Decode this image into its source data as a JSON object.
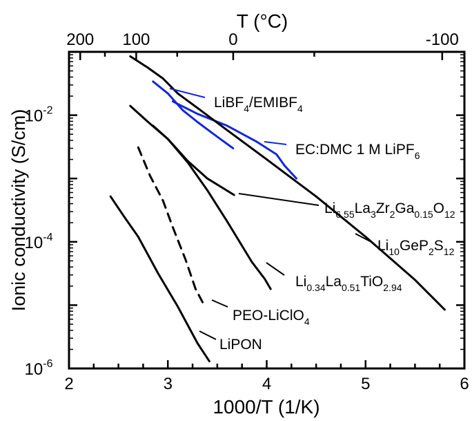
{
  "chart_data": {
    "type": "line",
    "xlabel": "1000/T (1/K)",
    "ylabel": "Ionic conductivity (S/cm)",
    "top_axis_label": "T (°C)",
    "xlim": [
      2,
      6
    ],
    "ylim_log10": [
      -6,
      -1
    ],
    "log_y": true,
    "grid": false,
    "x_ticks": [
      "2",
      "3",
      "4",
      "5",
      "6"
    ],
    "top_ticks": [
      "200",
      "100",
      "0",
      "-100"
    ],
    "y_ticks": [
      {
        "base": "10",
        "exp": "-2",
        "value": 0.01
      },
      {
        "base": "10",
        "exp": "-4",
        "value": 0.0001
      },
      {
        "base": "10",
        "exp": "-6",
        "value": 1e-06
      }
    ],
    "series": [
      {
        "key": "libf4",
        "label_parts": [
          [
            "LiBF",
            "n"
          ],
          [
            "4",
            "sub"
          ],
          [
            "/EMIBF",
            "n"
          ],
          [
            "4",
            "sub"
          ]
        ],
        "color": "#1428d4",
        "dashed": false,
        "x": [
          2.85,
          3.0,
          3.15,
          3.3,
          3.45,
          3.55,
          3.66
        ],
        "y": [
          0.034,
          0.022,
          0.012,
          0.0078,
          0.0052,
          0.004,
          0.003
        ]
      },
      {
        "key": "ecdmc",
        "label_parts": [
          [
            "EC:DMC 1 M LiPF",
            "n"
          ],
          [
            "6",
            "sub"
          ]
        ],
        "color": "#1428d4",
        "dashed": false,
        "x": [
          3.05,
          3.3,
          3.6,
          3.9,
          4.1,
          4.18,
          4.3
        ],
        "y": [
          0.0165,
          0.0105,
          0.0068,
          0.0038,
          0.0024,
          0.0016,
          0.001
        ]
      },
      {
        "key": "lgps",
        "label_parts": [
          [
            "Li",
            "n"
          ],
          [
            "10",
            "sub"
          ],
          [
            "GeP",
            "n"
          ],
          [
            "2",
            "sub"
          ],
          [
            "S",
            "n"
          ],
          [
            "12",
            "sub"
          ]
        ],
        "color": "#000000",
        "dashed": false,
        "x": [
          2.62,
          2.8,
          2.95,
          3.1,
          3.3,
          3.6,
          4.0,
          4.5,
          5.0,
          5.5,
          5.8
        ],
        "y": [
          0.085,
          0.056,
          0.038,
          0.022,
          0.013,
          0.0058,
          0.002,
          0.00052,
          0.00012,
          2.5e-05,
          8.5e-06
        ]
      },
      {
        "key": "llzo",
        "label_parts": [
          [
            "Li",
            "n"
          ],
          [
            "6.55",
            "sub"
          ],
          [
            "La",
            "n"
          ],
          [
            "3",
            "sub"
          ],
          [
            "Zr",
            "n"
          ],
          [
            "2",
            "sub"
          ],
          [
            "Ga",
            "n"
          ],
          [
            "0.15",
            "sub"
          ],
          [
            "O",
            "n"
          ],
          [
            "12",
            "sub"
          ]
        ],
        "color": "#000000",
        "dashed": false,
        "x": [
          2.85,
          3.0,
          3.2,
          3.4,
          3.67
        ],
        "y": [
          0.0068,
          0.0042,
          0.0019,
          0.001,
          0.00055
        ]
      },
      {
        "key": "llto",
        "label_parts": [
          [
            "Li",
            "n"
          ],
          [
            "0.34",
            "sub"
          ],
          [
            "La",
            "n"
          ],
          [
            "0.51",
            "sub"
          ],
          [
            "TiO",
            "n"
          ],
          [
            "2.94",
            "sub"
          ]
        ],
        "color": "#000000",
        "dashed": false,
        "x": [
          2.62,
          2.8,
          3.0,
          3.2,
          3.4,
          3.6,
          3.85,
          3.98,
          4.04
        ],
        "y": [
          0.014,
          0.0078,
          0.0042,
          0.0018,
          0.00065,
          0.00021,
          4.8e-05,
          2.6e-05,
          1.8e-05
        ]
      },
      {
        "key": "peo",
        "label_parts": [
          [
            "PEO-LiClO",
            "n"
          ],
          [
            "4",
            "sub"
          ]
        ],
        "color": "#000000",
        "dashed": true,
        "x": [
          2.7,
          2.82,
          2.95,
          3.05,
          3.18,
          3.28,
          3.36
        ],
        "y": [
          0.0031,
          0.0011,
          0.00045,
          0.00017,
          5.2e-05,
          1.8e-05,
          1.05e-05
        ]
      },
      {
        "key": "lipon",
        "label_parts": [
          [
            "LiPON",
            "n"
          ]
        ],
        "color": "#000000",
        "dashed": false,
        "x": [
          2.42,
          2.55,
          2.7,
          2.9,
          3.1,
          3.3,
          3.42
        ],
        "y": [
          0.00052,
          0.00026,
          0.00012,
          3.2e-05,
          9.5e-06,
          2.5e-06,
          1.3e-06
        ]
      }
    ]
  }
}
